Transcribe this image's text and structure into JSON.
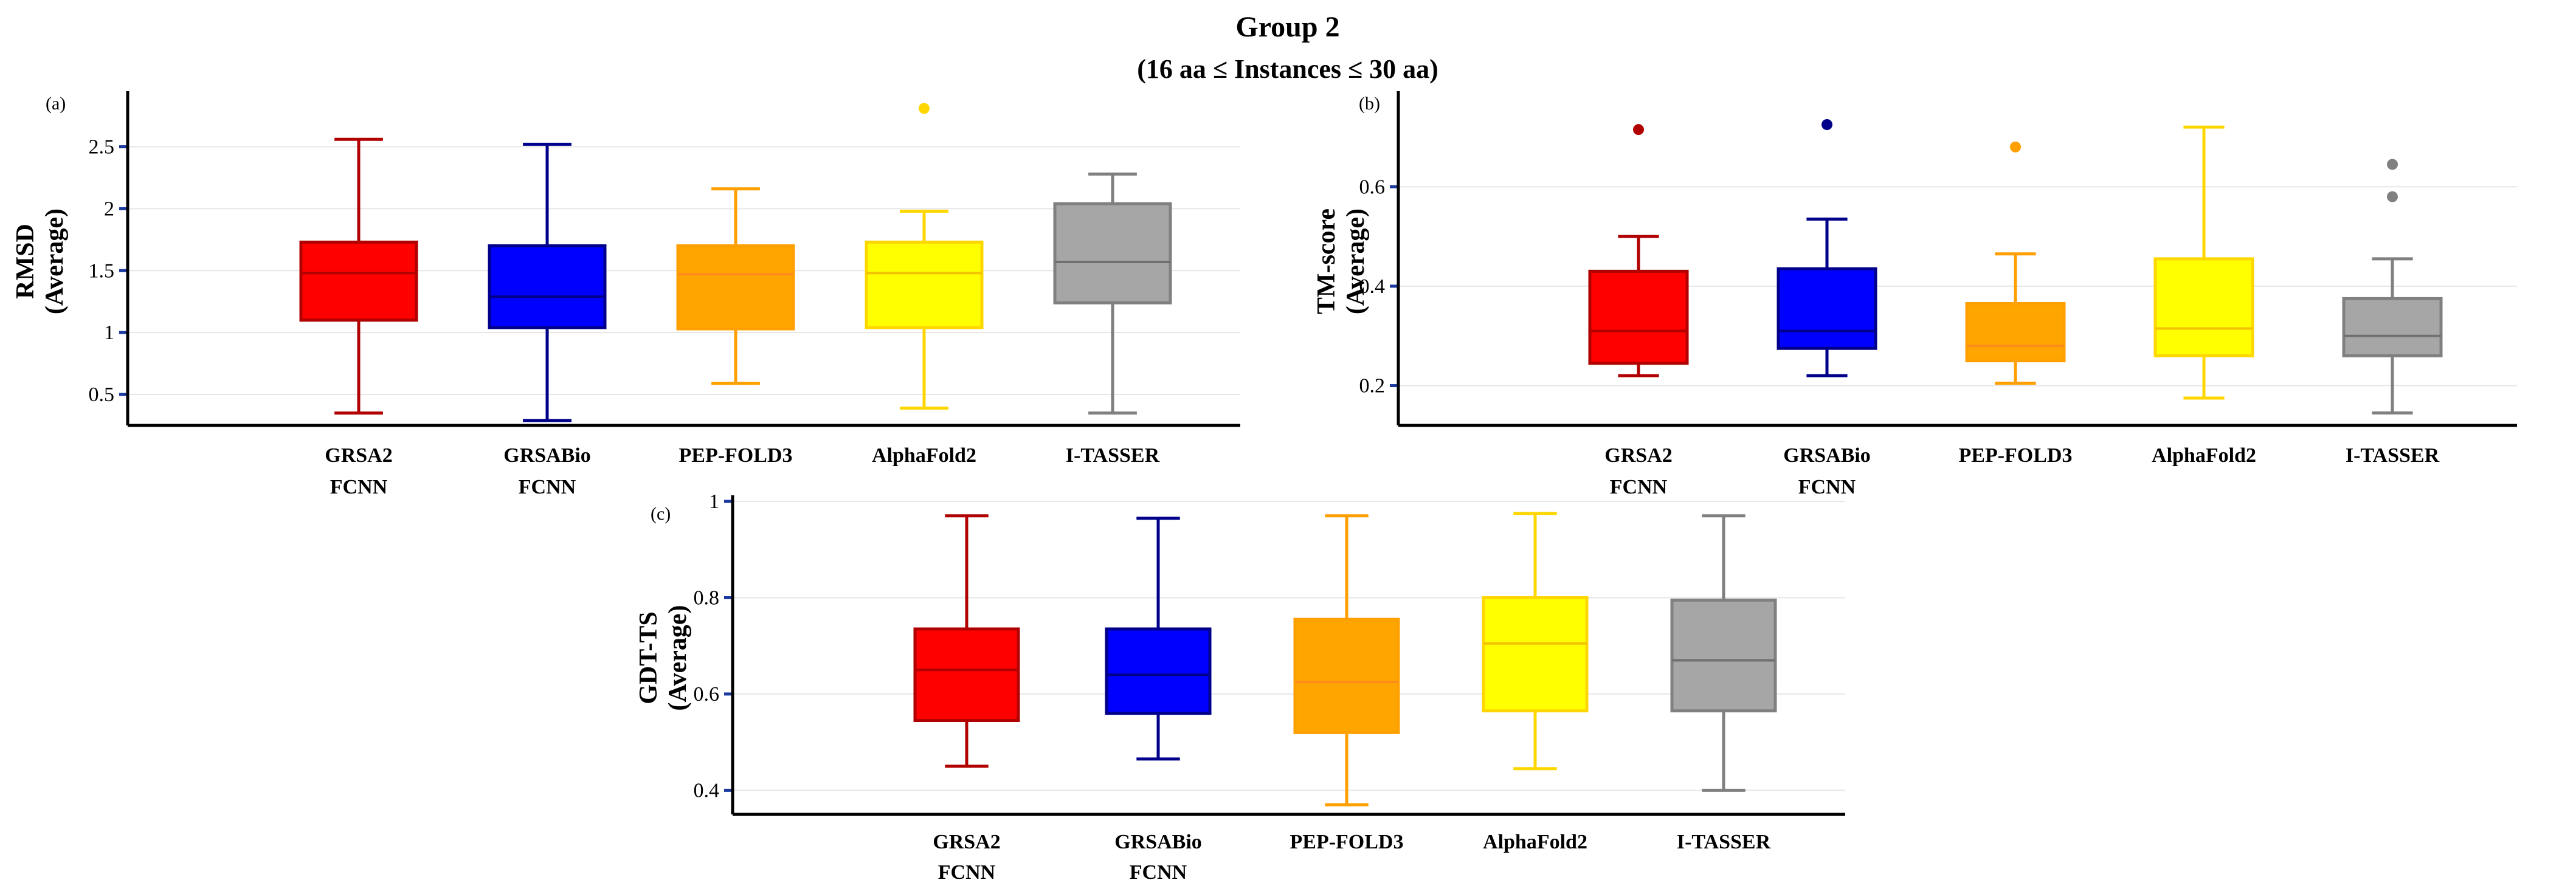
{
  "figure": {
    "title": "Group 2",
    "subtitle": "(16 aa ≤ Instances ≤ 30 aa)"
  },
  "chart_data": [
    {
      "id": "a",
      "type": "box",
      "panel_label": "(a)",
      "ylabel_line1": "RMSD",
      "ylabel_line2": "(Average)",
      "ylim": [
        0.25,
        2.9
      ],
      "yticks": [
        0.5,
        1,
        1.5,
        2,
        2.5
      ],
      "ytick_labels": [
        "0.5",
        "1",
        "1.5",
        "2",
        "2.5"
      ],
      "categories": [
        {
          "line1": "GRSA2",
          "line2": "FCNN"
        },
        {
          "line1": "GRSABio",
          "line2": "FCNN"
        },
        {
          "line1": "PEP-FOLD3",
          "line2": ""
        },
        {
          "line1": "AlphaFold2",
          "line2": ""
        },
        {
          "line1": "I-TASSER",
          "line2": ""
        }
      ],
      "boxes": [
        {
          "min": 0.35,
          "q1": 1.1,
          "median": 1.48,
          "q3": 1.73,
          "max": 2.56,
          "outliers": []
        },
        {
          "min": 0.29,
          "q1": 1.04,
          "median": 1.29,
          "q3": 1.7,
          "max": 2.52,
          "outliers": []
        },
        {
          "min": 0.59,
          "q1": 1.03,
          "median": 1.47,
          "q3": 1.7,
          "max": 2.16,
          "outliers": []
        },
        {
          "min": 0.39,
          "q1": 1.04,
          "median": 1.48,
          "q3": 1.73,
          "max": 1.98,
          "outliers": [
            2.81
          ]
        },
        {
          "min": 0.35,
          "q1": 1.24,
          "median": 1.57,
          "q3": 2.04,
          "max": 2.28,
          "outliers": []
        }
      ]
    },
    {
      "id": "b",
      "type": "box",
      "panel_label": "(b)",
      "ylabel_line1": "TM-score",
      "ylabel_line2": "(Average)",
      "ylim": [
        0.12,
        0.78
      ],
      "yticks": [
        0.2,
        0.4,
        0.6
      ],
      "ytick_labels": [
        "0.2",
        "0.4",
        "0.6"
      ],
      "categories": [
        {
          "line1": "GRSA2",
          "line2": "FCNN"
        },
        {
          "line1": "GRSABio",
          "line2": "FCNN"
        },
        {
          "line1": "PEP-FOLD3",
          "line2": ""
        },
        {
          "line1": "AlphaFold2",
          "line2": ""
        },
        {
          "line1": "I-TASSER",
          "line2": ""
        }
      ],
      "boxes": [
        {
          "min": 0.22,
          "q1": 0.245,
          "median": 0.31,
          "q3": 0.43,
          "max": 0.5,
          "outliers": [
            0.715
          ]
        },
        {
          "min": 0.22,
          "q1": 0.275,
          "median": 0.31,
          "q3": 0.435,
          "max": 0.535,
          "outliers": [
            0.725
          ]
        },
        {
          "min": 0.205,
          "q1": 0.25,
          "median": 0.28,
          "q3": 0.365,
          "max": 0.465,
          "outliers": [
            0.68
          ]
        },
        {
          "min": 0.175,
          "q1": 0.26,
          "median": 0.315,
          "q3": 0.455,
          "max": 0.72,
          "outliers": []
        },
        {
          "min": 0.145,
          "q1": 0.26,
          "median": 0.3,
          "q3": 0.375,
          "max": 0.455,
          "outliers": [
            0.58,
            0.645
          ]
        }
      ]
    },
    {
      "id": "c",
      "type": "box",
      "panel_label": "(c)",
      "ylabel_line1": "GDT-TS",
      "ylabel_line2": "(Average)",
      "ylim": [
        0.35,
        1.0
      ],
      "yticks": [
        0.4,
        0.6,
        0.8,
        1
      ],
      "ytick_labels": [
        "0.4",
        "0.6",
        "0.8",
        "1"
      ],
      "categories": [
        {
          "line1": "GRSA2",
          "line2": "FCNN"
        },
        {
          "line1": "GRSABio",
          "line2": "FCNN"
        },
        {
          "line1": "PEP-FOLD3",
          "line2": ""
        },
        {
          "line1": "AlphaFold2",
          "line2": ""
        },
        {
          "line1": "I-TASSER",
          "line2": ""
        }
      ],
      "boxes": [
        {
          "min": 0.45,
          "q1": 0.545,
          "median": 0.65,
          "q3": 0.735,
          "max": 0.97,
          "outliers": []
        },
        {
          "min": 0.465,
          "q1": 0.56,
          "median": 0.64,
          "q3": 0.735,
          "max": 0.965,
          "outliers": []
        },
        {
          "min": 0.37,
          "q1": 0.52,
          "median": 0.625,
          "q3": 0.755,
          "max": 0.97,
          "outliers": []
        },
        {
          "min": 0.445,
          "q1": 0.565,
          "median": 0.705,
          "q3": 0.8,
          "max": 0.975,
          "outliers": []
        },
        {
          "min": 0.4,
          "q1": 0.565,
          "median": 0.67,
          "q3": 0.795,
          "max": 0.97,
          "outliers": []
        }
      ]
    }
  ],
  "series_colors": [
    {
      "fill": "#ff0000",
      "stroke": "#b00000",
      "median": "#b00000"
    },
    {
      "fill": "#0000ff",
      "stroke": "#00008b",
      "median": "#00008b"
    },
    {
      "fill": "#ffa500",
      "stroke": "#ff9f00",
      "median": "#ff8c1a"
    },
    {
      "fill": "#ffff00",
      "stroke": "#ffd700",
      "median": "#f2c200"
    },
    {
      "fill": "#a6a6a6",
      "stroke": "#808080",
      "median": "#707070"
    }
  ]
}
